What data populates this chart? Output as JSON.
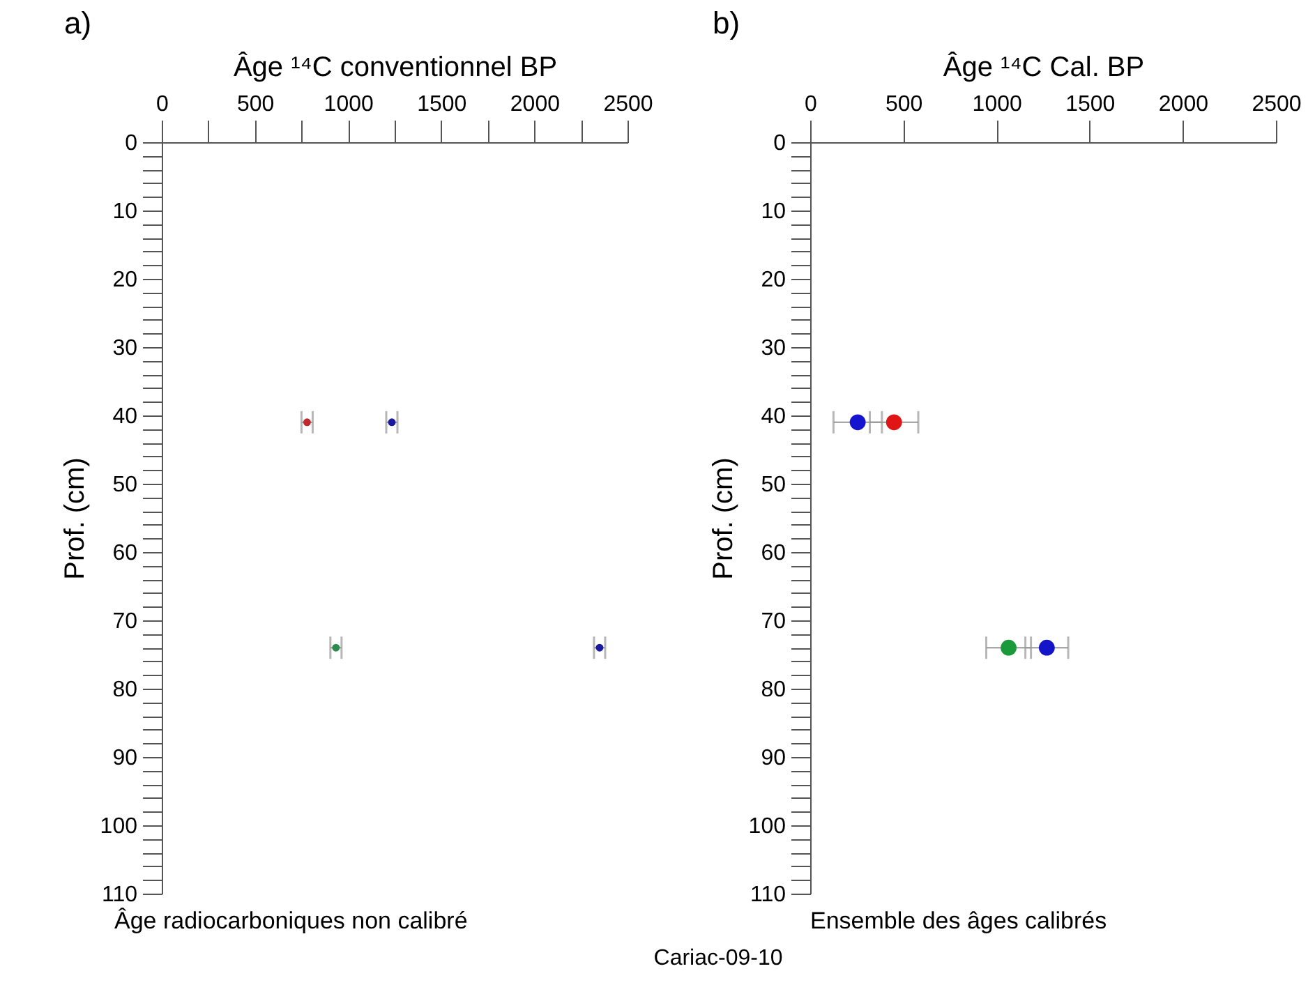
{
  "chart_data": [
    {
      "type": "scatter",
      "title": "a)",
      "xlabel": "Âge ¹⁴C conventionnel BP",
      "ylabel": "Prof. (cm)",
      "annotations": [
        "Âge radiocarboniques non calibré",
        "Cariac-09-10"
      ],
      "xlim": [
        0,
        2500
      ],
      "xticks": [
        0,
        {
          "value": 250,
          "label": null
        },
        500,
        {
          "value": 750,
          "label": null
        },
        1000,
        {
          "value": 1250,
          "label": null
        },
        1500,
        {
          "value": 1750,
          "label": null
        },
        2000,
        {
          "value": 2250,
          "label": null
        },
        2500
      ],
      "ylim": [
        110,
        0
      ],
      "yticks": [
        0,
        {
          "value": 2,
          "label": null
        },
        {
          "value": 4,
          "label": null
        },
        {
          "value": 6,
          "label": null
        },
        {
          "value": 8,
          "label": null
        },
        10,
        {
          "value": 12,
          "label": null
        },
        {
          "value": 14,
          "label": null
        },
        {
          "value": 16,
          "label": null
        },
        {
          "value": 18,
          "label": null
        },
        20,
        {
          "value": 22,
          "label": null
        },
        {
          "value": 24,
          "label": null
        },
        {
          "value": 26,
          "label": null
        },
        {
          "value": 28,
          "label": null
        },
        30,
        {
          "value": 32,
          "label": null
        },
        {
          "value": 34,
          "label": null
        },
        {
          "value": 36,
          "label": null
        },
        {
          "value": 38,
          "label": null
        },
        40,
        {
          "value": 42,
          "label": null
        },
        {
          "value": 44,
          "label": null
        },
        {
          "value": 46,
          "label": null
        },
        {
          "value": 48,
          "label": null
        },
        50,
        {
          "value": 52,
          "label": null
        },
        {
          "value": 54,
          "label": null
        },
        {
          "value": 56,
          "label": null
        },
        {
          "value": 58,
          "label": null
        },
        60,
        {
          "value": 62,
          "label": null
        },
        {
          "value": 64,
          "label": null
        },
        {
          "value": 66,
          "label": null
        },
        {
          "value": 68,
          "label": null
        },
        70,
        {
          "value": 72,
          "label": null
        },
        {
          "value": 74,
          "label": null
        },
        {
          "value": 76,
          "label": null
        },
        {
          "value": 78,
          "label": null
        },
        80,
        {
          "value": 82,
          "label": null
        },
        {
          "value": 84,
          "label": null
        },
        {
          "value": 86,
          "label": null
        },
        {
          "value": 88,
          "label": null
        },
        90,
        {
          "value": 92,
          "label": null
        },
        {
          "value": 94,
          "label": null
        },
        {
          "value": 96,
          "label": null
        },
        {
          "value": 98,
          "label": null
        },
        100,
        {
          "value": 102,
          "label": null
        },
        {
          "value": 104,
          "label": null
        },
        {
          "value": 106,
          "label": null
        },
        {
          "value": 108,
          "label": null
        },
        110
      ],
      "marker": "circle",
      "series": [
        {
          "color": "#c0282d",
          "x": [
            780
          ],
          "values": [
            41
          ],
          "xerrors": [
            30
          ]
        },
        {
          "color": "#1a1aa0",
          "x": [
            1235,
            2350
          ],
          "values": [
            41,
            74
          ],
          "xerrors": [
            30,
            30
          ]
        },
        {
          "color": "#2e8b4e",
          "x": [
            935
          ],
          "values": [
            74
          ],
          "xerrors": [
            30
          ]
        }
      ]
    },
    {
      "type": "scatter",
      "title": "b)",
      "xlabel": "Âge ¹⁴C Cal. BP",
      "ylabel": "Prof. (cm)",
      "annotations": [
        "Ensemble des âges calibrés"
      ],
      "xlim": [
        0,
        2500
      ],
      "xticks": [
        0,
        500,
        1000,
        1500,
        2000,
        2500
      ],
      "ylim": [
        110,
        0
      ],
      "yticks": [
        0,
        {
          "value": 2,
          "label": null
        },
        {
          "value": 4,
          "label": null
        },
        {
          "value": 6,
          "label": null
        },
        {
          "value": 8,
          "label": null
        },
        10,
        {
          "value": 12,
          "label": null
        },
        {
          "value": 14,
          "label": null
        },
        {
          "value": 16,
          "label": null
        },
        {
          "value": 18,
          "label": null
        },
        20,
        {
          "value": 22,
          "label": null
        },
        {
          "value": 24,
          "label": null
        },
        {
          "value": 26,
          "label": null
        },
        {
          "value": 28,
          "label": null
        },
        30,
        {
          "value": 32,
          "label": null
        },
        {
          "value": 34,
          "label": null
        },
        {
          "value": 36,
          "label": null
        },
        {
          "value": 38,
          "label": null
        },
        40,
        {
          "value": 42,
          "label": null
        },
        {
          "value": 44,
          "label": null
        },
        {
          "value": 46,
          "label": null
        },
        {
          "value": 48,
          "label": null
        },
        50,
        {
          "value": 52,
          "label": null
        },
        {
          "value": 54,
          "label": null
        },
        {
          "value": 56,
          "label": null
        },
        {
          "value": 58,
          "label": null
        },
        60,
        {
          "value": 62,
          "label": null
        },
        {
          "value": 64,
          "label": null
        },
        {
          "value": 66,
          "label": null
        },
        {
          "value": 68,
          "label": null
        },
        70,
        {
          "value": 72,
          "label": null
        },
        {
          "value": 74,
          "label": null
        },
        {
          "value": 76,
          "label": null
        },
        {
          "value": 78,
          "label": null
        },
        80,
        {
          "value": 82,
          "label": null
        },
        {
          "value": 84,
          "label": null
        },
        {
          "value": 86,
          "label": null
        },
        {
          "value": 88,
          "label": null
        },
        90,
        {
          "value": 92,
          "label": null
        },
        {
          "value": 94,
          "label": null
        },
        {
          "value": 96,
          "label": null
        },
        {
          "value": 98,
          "label": null
        },
        100,
        {
          "value": 102,
          "label": null
        },
        {
          "value": 104,
          "label": null
        },
        {
          "value": 106,
          "label": null
        },
        {
          "value": 108,
          "label": null
        },
        110
      ],
      "marker": "circle",
      "series": [
        {
          "color": "#1515d0",
          "x": [
            255
          ],
          "values": [
            41
          ],
          "xerrors": [
            130
          ]
        },
        {
          "color": "#e01515",
          "x": [
            450
          ],
          "values": [
            41
          ],
          "xerrors": [
            130
          ]
        },
        {
          "color": "#1a9a3a",
          "x": [
            1065
          ],
          "values": [
            74
          ],
          "xerrors": [
            120
          ]
        },
        {
          "color": "#1515c8",
          "x": [
            1270
          ],
          "values": [
            74
          ],
          "xerrors": [
            115
          ]
        }
      ]
    }
  ]
}
